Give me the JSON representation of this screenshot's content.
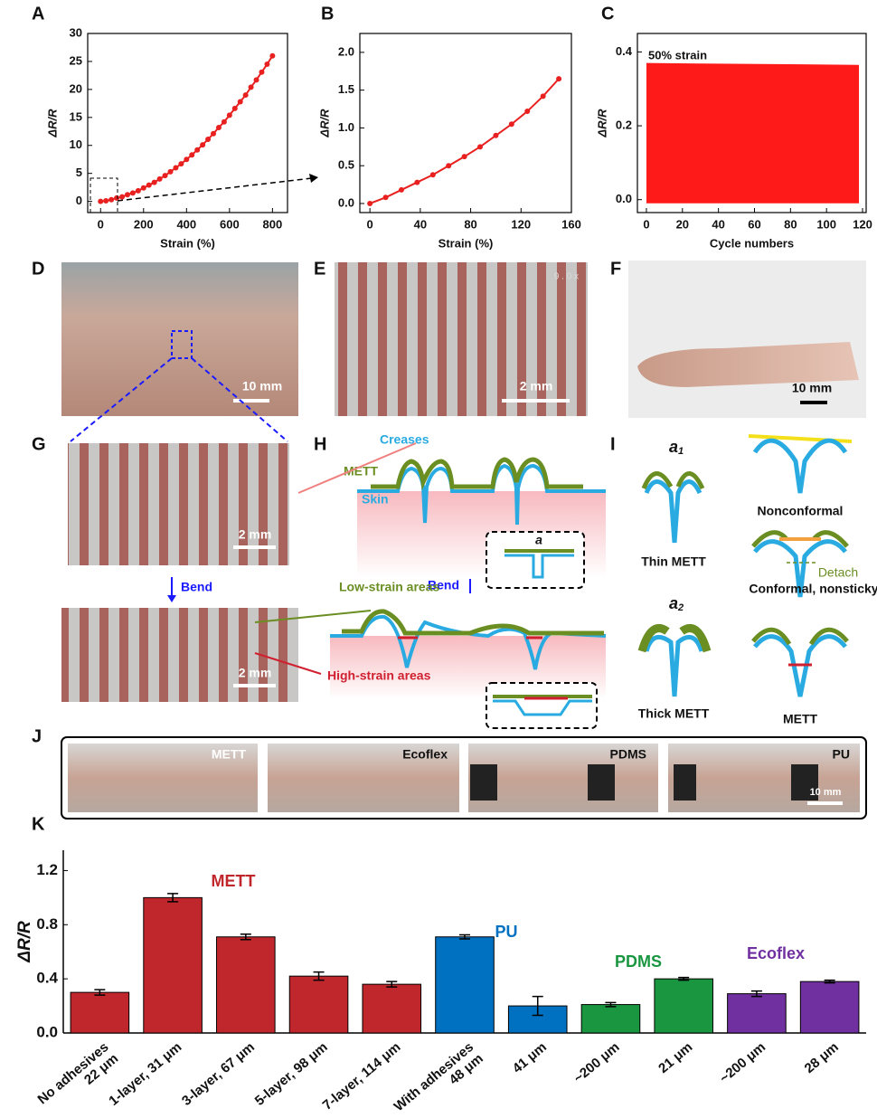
{
  "panels": [
    "A",
    "B",
    "C",
    "D",
    "E",
    "F",
    "G",
    "H",
    "I",
    "J",
    "K"
  ],
  "chart_data": [
    {
      "type": "line",
      "x_label": "Strain (%)",
      "y_label": "ΔR/R",
      "x": [
        0,
        25,
        50,
        75,
        100,
        125,
        150,
        175,
        200,
        225,
        250,
        275,
        300,
        325,
        350,
        375,
        400,
        425,
        450,
        475,
        500,
        525,
        550,
        575,
        600,
        625,
        650,
        675,
        700,
        725,
        750,
        775,
        800
      ],
      "series": [
        {
          "color": "#e8201f",
          "values": [
            0,
            0.1,
            0.3,
            0.6,
            0.8,
            1.2,
            1.5,
            1.9,
            2.4,
            2.9,
            3.4,
            4.0,
            4.6,
            5.3,
            6.0,
            6.7,
            7.5,
            8.3,
            9.2,
            10.1,
            11.1,
            12.1,
            13.2,
            14.2,
            15.4,
            16.6,
            17.8,
            19.0,
            20.4,
            21.7,
            23.1,
            24.5,
            26.0
          ]
        }
      ],
      "xlim": [
        -60,
        870
      ],
      "xticks": [
        0,
        200,
        400,
        600,
        800
      ],
      "ylim": [
        -2,
        30
      ],
      "yticks": [
        0,
        5,
        10,
        15,
        20,
        25,
        30
      ]
    },
    {
      "type": "line",
      "x_label": "Strain (%)",
      "y_label": "ΔR/R",
      "x": [
        0,
        12.5,
        25,
        37.5,
        50,
        62.5,
        75,
        87.5,
        100,
        112.5,
        125,
        137.5,
        150
      ],
      "series": [
        {
          "color": "#e8201f",
          "values": [
            0,
            0.08,
            0.18,
            0.28,
            0.38,
            0.5,
            0.62,
            0.75,
            0.9,
            1.05,
            1.22,
            1.42,
            1.65
          ]
        }
      ],
      "xlim": [
        -8,
        160
      ],
      "xticks": [
        0,
        40,
        80,
        120,
        160
      ],
      "ylim": [
        -0.12,
        2.25
      ],
      "yticks": [
        {
          "value": 0,
          "label": "0.0"
        },
        {
          "value": 0.5,
          "label": "0.5"
        },
        {
          "value": 1,
          "label": "1.0"
        },
        {
          "value": 1.5,
          "label": "1.5"
        },
        {
          "value": 2,
          "label": "2.0"
        }
      ]
    },
    {
      "type": "range",
      "x_label": "Cycle numbers",
      "y_label": "ΔR/R",
      "annotation": "50% strain",
      "color": "#ff1a1a",
      "x": [
        0,
        118
      ],
      "high": [
        0.37,
        0.365
      ],
      "low": [
        -0.01,
        -0.01
      ],
      "xlim": [
        -5,
        122
      ],
      "xticks": [
        0,
        20,
        40,
        60,
        80,
        100,
        120
      ],
      "ylim": [
        -0.035,
        0.45
      ],
      "yticks": [
        {
          "value": 0,
          "label": "0.0"
        },
        {
          "value": 0.2,
          "label": "0.2"
        },
        {
          "value": 0.4,
          "label": "0.4"
        }
      ]
    },
    {
      "type": "bar",
      "y_label": "ΔR/R",
      "categories": [
        [
          "No adhesives",
          "22 μm"
        ],
        [
          "1-layer, 31 μm"
        ],
        [
          "3-layer, 67 μm"
        ],
        [
          "5-layer, 98 μm"
        ],
        [
          "7-layer, 114 μm"
        ],
        [
          "With adhesives",
          "48 μm"
        ],
        [
          "41 μm"
        ],
        [
          "~200 μm"
        ],
        [
          "21 μm"
        ],
        [
          "~200 μm"
        ],
        [
          "28 μm"
        ]
      ],
      "values": [
        0.3,
        1.0,
        0.71,
        0.42,
        0.36,
        0.71,
        0.2,
        0.21,
        0.4,
        0.29,
        0.38
      ],
      "errors": [
        0.02,
        0.03,
        0.02,
        0.03,
        0.02,
        0.015,
        0.07,
        0.015,
        0.01,
        0.02,
        0.01
      ],
      "colors": [
        "#c0272d",
        "#c0272d",
        "#c0272d",
        "#c0272d",
        "#c0272d",
        "#0070c0",
        "#0070c0",
        "#1a9641",
        "#1a9641",
        "#7030a0",
        "#7030a0"
      ],
      "group_labels": [
        {
          "text": "METT",
          "color": "#c0272d"
        },
        {
          "text": "PU",
          "color": "#0070c0"
        },
        {
          "text": "PDMS",
          "color": "#1a9641"
        },
        {
          "text": "Ecoflex",
          "color": "#7030a0"
        }
      ],
      "ylim": [
        0,
        1.35
      ],
      "yticks": [
        {
          "value": 0,
          "label": "0.0"
        },
        {
          "value": 0.4,
          "label": "0.4"
        },
        {
          "value": 0.8,
          "label": "0.8"
        },
        {
          "value": 1.2,
          "label": "1.2"
        }
      ]
    }
  ],
  "photos": {
    "d_scale": "10 mm",
    "e_scale": "2 mm",
    "e_zoom": "9 . 0  x",
    "f_scale": "10 mm",
    "g_scale_top": "2 mm",
    "g_scale_bottom": "2 mm",
    "g_bend": "Bend"
  },
  "diagram_h": {
    "creases": "Creases",
    "mett": "METT",
    "skin": "Skin",
    "gap": "a",
    "bend": "Bend",
    "low_strain": "Low-strain areas",
    "high_strain": "High-strain areas"
  },
  "diagram_i": {
    "gap_1": {
      "symbol": "a",
      "subscript": "1"
    },
    "gap_2": {
      "symbol": "a",
      "subscript": "2"
    },
    "thin": "Thin METT",
    "thick": "Thick METT",
    "nonconformal": "Nonconformal",
    "detach": "Detach",
    "conformal": "Conformal, nonsticky",
    "mett": "METT"
  },
  "panel_j": {
    "labels": [
      "METT",
      "Ecoflex",
      "PDMS",
      "PU"
    ],
    "scale": "10 mm"
  }
}
